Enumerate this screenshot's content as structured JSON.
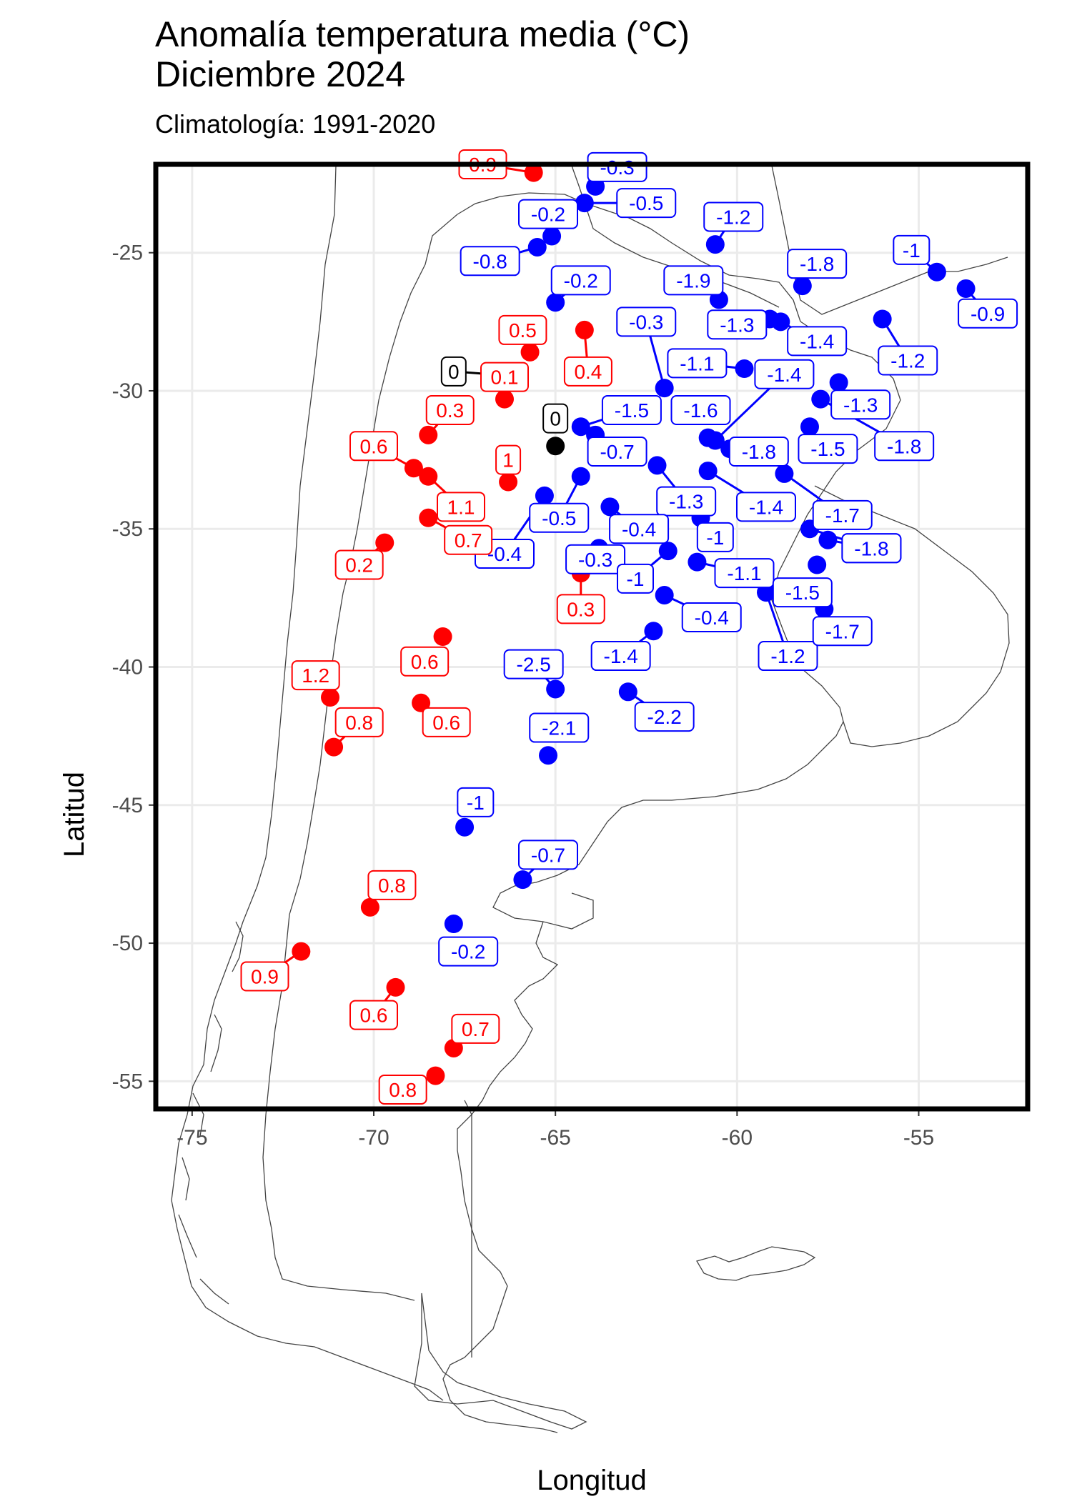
{
  "title_line1": "Anomalía temperatura media (°C)",
  "title_line2": "Diciembre 2024",
  "subtitle": "Climatología: 1991-2020",
  "colors": {
    "positive": "#ff0000",
    "negative": "#0000ff",
    "zero": "#000000",
    "grid": "#ebebeb",
    "border": "#000000",
    "coast": "#444444"
  },
  "chart_data": {
    "type": "scatter",
    "xlabel": "Longitud",
    "ylabel": "Latitud",
    "xlim": [
      -76,
      -52
    ],
    "ylim": [
      -56,
      -21.8
    ],
    "xticks": [
      -75,
      -70,
      -65,
      -60,
      -55
    ],
    "yticks": [
      -25,
      -30,
      -35,
      -40,
      -45,
      -50,
      -55
    ],
    "grid": true,
    "points": [
      {
        "lon": -65.6,
        "lat": -22.1,
        "value": 0.9,
        "lx": -67.0,
        "ly": -21.8
      },
      {
        "lon": -63.9,
        "lat": -22.6,
        "value": -0.3,
        "lx": -63.3,
        "ly": -21.9
      },
      {
        "lon": -64.2,
        "lat": -23.2,
        "value": -0.5,
        "lx": -62.5,
        "ly": -23.2
      },
      {
        "lon": -65.1,
        "lat": -24.4,
        "value": -0.2,
        "lx": -65.2,
        "ly": -23.6
      },
      {
        "lon": -65.5,
        "lat": -24.8,
        "value": -0.8,
        "lx": -66.8,
        "ly": -25.3
      },
      {
        "lon": -60.6,
        "lat": -24.7,
        "value": -1.2,
        "lx": -60.1,
        "ly": -23.7
      },
      {
        "lon": -54.5,
        "lat": -25.7,
        "value": -1,
        "lx": -55.2,
        "ly": -24.9
      },
      {
        "lon": -53.7,
        "lat": -26.3,
        "value": -0.9,
        "lx": -53.1,
        "ly": -27.2
      },
      {
        "lon": -58.2,
        "lat": -26.2,
        "value": -1.8,
        "lx": -57.8,
        "ly": -25.4
      },
      {
        "lon": -65.0,
        "lat": -26.8,
        "value": -0.2,
        "lx": -64.3,
        "ly": -26.0
      },
      {
        "lon": -60.5,
        "lat": -26.7,
        "value": -1.9,
        "lx": -61.2,
        "ly": -26.0
      },
      {
        "lon": -59.1,
        "lat": -27.4,
        "value": -1.3,
        "lx": -60.0,
        "ly": -27.6
      },
      {
        "lon": -58.8,
        "lat": -27.5,
        "value": -1.4,
        "lx": -57.8,
        "ly": -28.2
      },
      {
        "lon": -56.0,
        "lat": -27.4,
        "value": -1.2,
        "lx": -55.3,
        "ly": -28.9
      },
      {
        "lon": -64.2,
        "lat": -27.8,
        "value": 0.4,
        "lx": -64.1,
        "ly": -29.3
      },
      {
        "lon": -65.7,
        "lat": -28.6,
        "value": 0.5,
        "lx": -65.9,
        "ly": -27.8
      },
      {
        "lon": -62.0,
        "lat": -29.9,
        "value": -0.3,
        "lx": -62.5,
        "ly": -27.5
      },
      {
        "lon": -59.8,
        "lat": -29.2,
        "value": -1.1,
        "lx": -61.1,
        "ly": -29.0
      },
      {
        "lon": -57.2,
        "lat": -29.7,
        "value": -1.3,
        "lx": -56.6,
        "ly": -30.5
      },
      {
        "lon": -66.8,
        "lat": -29.4,
        "value": 0,
        "lx": -67.8,
        "ly": -29.3
      },
      {
        "lon": -66.4,
        "lat": -30.3,
        "value": 0.1,
        "lx": -66.4,
        "ly": -29.5
      },
      {
        "lon": -57.7,
        "lat": -30.3,
        "value": -1.8,
        "lx": -55.4,
        "ly": -32.0
      },
      {
        "lon": -60.6,
        "lat": -31.8,
        "value": -1.4,
        "lx": -58.7,
        "ly": -29.4
      },
      {
        "lon": -58.0,
        "lat": -31.3,
        "value": -1.5,
        "lx": -57.5,
        "ly": -32.1
      },
      {
        "lon": -65.0,
        "lat": -32.0,
        "value": 0,
        "lx": -65.0,
        "ly": -31.0
      },
      {
        "lon": -68.5,
        "lat": -31.6,
        "value": 0.3,
        "lx": -67.9,
        "ly": -30.7
      },
      {
        "lon": -64.3,
        "lat": -31.3,
        "value": -1.5,
        "lx": -62.9,
        "ly": -30.7
      },
      {
        "lon": -63.9,
        "lat": -31.6,
        "value": -0.7,
        "lx": -63.3,
        "ly": -32.2
      },
      {
        "lon": -60.8,
        "lat": -31.7,
        "value": -1.6,
        "lx": -61.0,
        "ly": -30.7
      },
      {
        "lon": -60.2,
        "lat": -32.1,
        "value": -1.8,
        "lx": -59.4,
        "ly": -32.2
      },
      {
        "lon": -68.9,
        "lat": -32.8,
        "value": 0.6,
        "lx": -70.0,
        "ly": -32.0
      },
      {
        "lon": -68.5,
        "lat": -33.1,
        "value": 1.1,
        "lx": -67.6,
        "ly": -34.2
      },
      {
        "lon": -66.3,
        "lat": -33.3,
        "value": 1,
        "lx": -66.3,
        "ly": -32.5
      },
      {
        "lon": -62.2,
        "lat": -32.7,
        "value": -1.3,
        "lx": -61.4,
        "ly": -34.0
      },
      {
        "lon": -60.8,
        "lat": -32.9,
        "value": -1.4,
        "lx": -59.2,
        "ly": -34.2
      },
      {
        "lon": -58.7,
        "lat": -33.0,
        "value": -1.7,
        "lx": -57.1,
        "ly": -34.5
      },
      {
        "lon": -65.3,
        "lat": -33.8,
        "value": -0.4,
        "lx": -66.4,
        "ly": -35.9
      },
      {
        "lon": -64.3,
        "lat": -33.1,
        "value": -0.5,
        "lx": -64.9,
        "ly": -34.6
      },
      {
        "lon": -63.5,
        "lat": -34.2,
        "value": -0.4,
        "lx": -62.7,
        "ly": -35.0
      },
      {
        "lon": -61.0,
        "lat": -34.6,
        "value": -1,
        "lx": -60.6,
        "ly": -35.3
      },
      {
        "lon": -58.0,
        "lat": -35.0,
        "value": -1.8,
        "lx": -56.3,
        "ly": -35.7
      },
      {
        "lon": -57.5,
        "lat": -35.4,
        "value": -1.8,
        "lx": -56.3,
        "ly": -35.7
      },
      {
        "lon": -68.5,
        "lat": -34.6,
        "value": 0.7,
        "lx": -67.4,
        "ly": -35.4
      },
      {
        "lon": -69.7,
        "lat": -35.5,
        "value": 0.2,
        "lx": -70.4,
        "ly": -36.3
      },
      {
        "lon": -63.8,
        "lat": -35.7,
        "value": -0.3,
        "lx": -63.9,
        "ly": -36.1
      },
      {
        "lon": -61.9,
        "lat": -35.8,
        "value": -1,
        "lx": -62.8,
        "ly": -36.8
      },
      {
        "lon": -61.1,
        "lat": -36.2,
        "value": -1.1,
        "lx": -59.8,
        "ly": -36.6
      },
      {
        "lon": -57.8,
        "lat": -36.3,
        "value": -1.5,
        "lx": -58.2,
        "ly": -37.3
      },
      {
        "lon": -64.3,
        "lat": -36.6,
        "value": 0.3,
        "lx": -64.3,
        "ly": -37.9
      },
      {
        "lon": -62.0,
        "lat": -37.4,
        "value": -0.4,
        "lx": -60.7,
        "ly": -38.2
      },
      {
        "lon": -59.2,
        "lat": -37.3,
        "value": -1.2,
        "lx": -58.6,
        "ly": -39.6
      },
      {
        "lon": -57.6,
        "lat": -37.9,
        "value": -1.7,
        "lx": -57.1,
        "ly": -38.7
      },
      {
        "lon": -62.3,
        "lat": -38.7,
        "value": -1.4,
        "lx": -63.2,
        "ly": -39.6
      },
      {
        "lon": -68.1,
        "lat": -38.9,
        "value": 0.6,
        "lx": -68.6,
        "ly": -39.8
      },
      {
        "lon": -65.0,
        "lat": -40.8,
        "value": -2.5,
        "lx": -65.6,
        "ly": -39.9
      },
      {
        "lon": -63.0,
        "lat": -40.9,
        "value": -2.2,
        "lx": -62.0,
        "ly": -41.8
      },
      {
        "lon": -71.2,
        "lat": -41.1,
        "value": 1.2,
        "lx": -71.6,
        "ly": -40.3
      },
      {
        "lon": -68.7,
        "lat": -41.3,
        "value": 0.6,
        "lx": -68.0,
        "ly": -42.0
      },
      {
        "lon": -71.1,
        "lat": -42.9,
        "value": 0.8,
        "lx": -70.4,
        "ly": -42.0
      },
      {
        "lon": -65.2,
        "lat": -43.2,
        "value": -2.1,
        "lx": -64.9,
        "ly": -42.2
      },
      {
        "lon": -67.5,
        "lat": -45.8,
        "value": -1,
        "lx": -67.2,
        "ly": -44.9
      },
      {
        "lon": -65.9,
        "lat": -47.7,
        "value": -0.7,
        "lx": -65.2,
        "ly": -46.8
      },
      {
        "lon": -70.1,
        "lat": -48.7,
        "value": 0.8,
        "lx": -69.5,
        "ly": -47.9
      },
      {
        "lon": -67.8,
        "lat": -49.3,
        "value": -0.2,
        "lx": -67.4,
        "ly": -50.3
      },
      {
        "lon": -72.0,
        "lat": -50.3,
        "value": 0.9,
        "lx": -73.0,
        "ly": -51.2
      },
      {
        "lon": -69.4,
        "lat": -51.6,
        "value": 0.6,
        "lx": -70.0,
        "ly": -52.6
      },
      {
        "lon": -67.8,
        "lat": -53.8,
        "value": 0.7,
        "lx": -67.2,
        "ly": -53.1
      },
      {
        "lon": -68.3,
        "lat": -54.8,
        "value": 0.8,
        "lx": -69.2,
        "ly": -55.3
      }
    ]
  }
}
